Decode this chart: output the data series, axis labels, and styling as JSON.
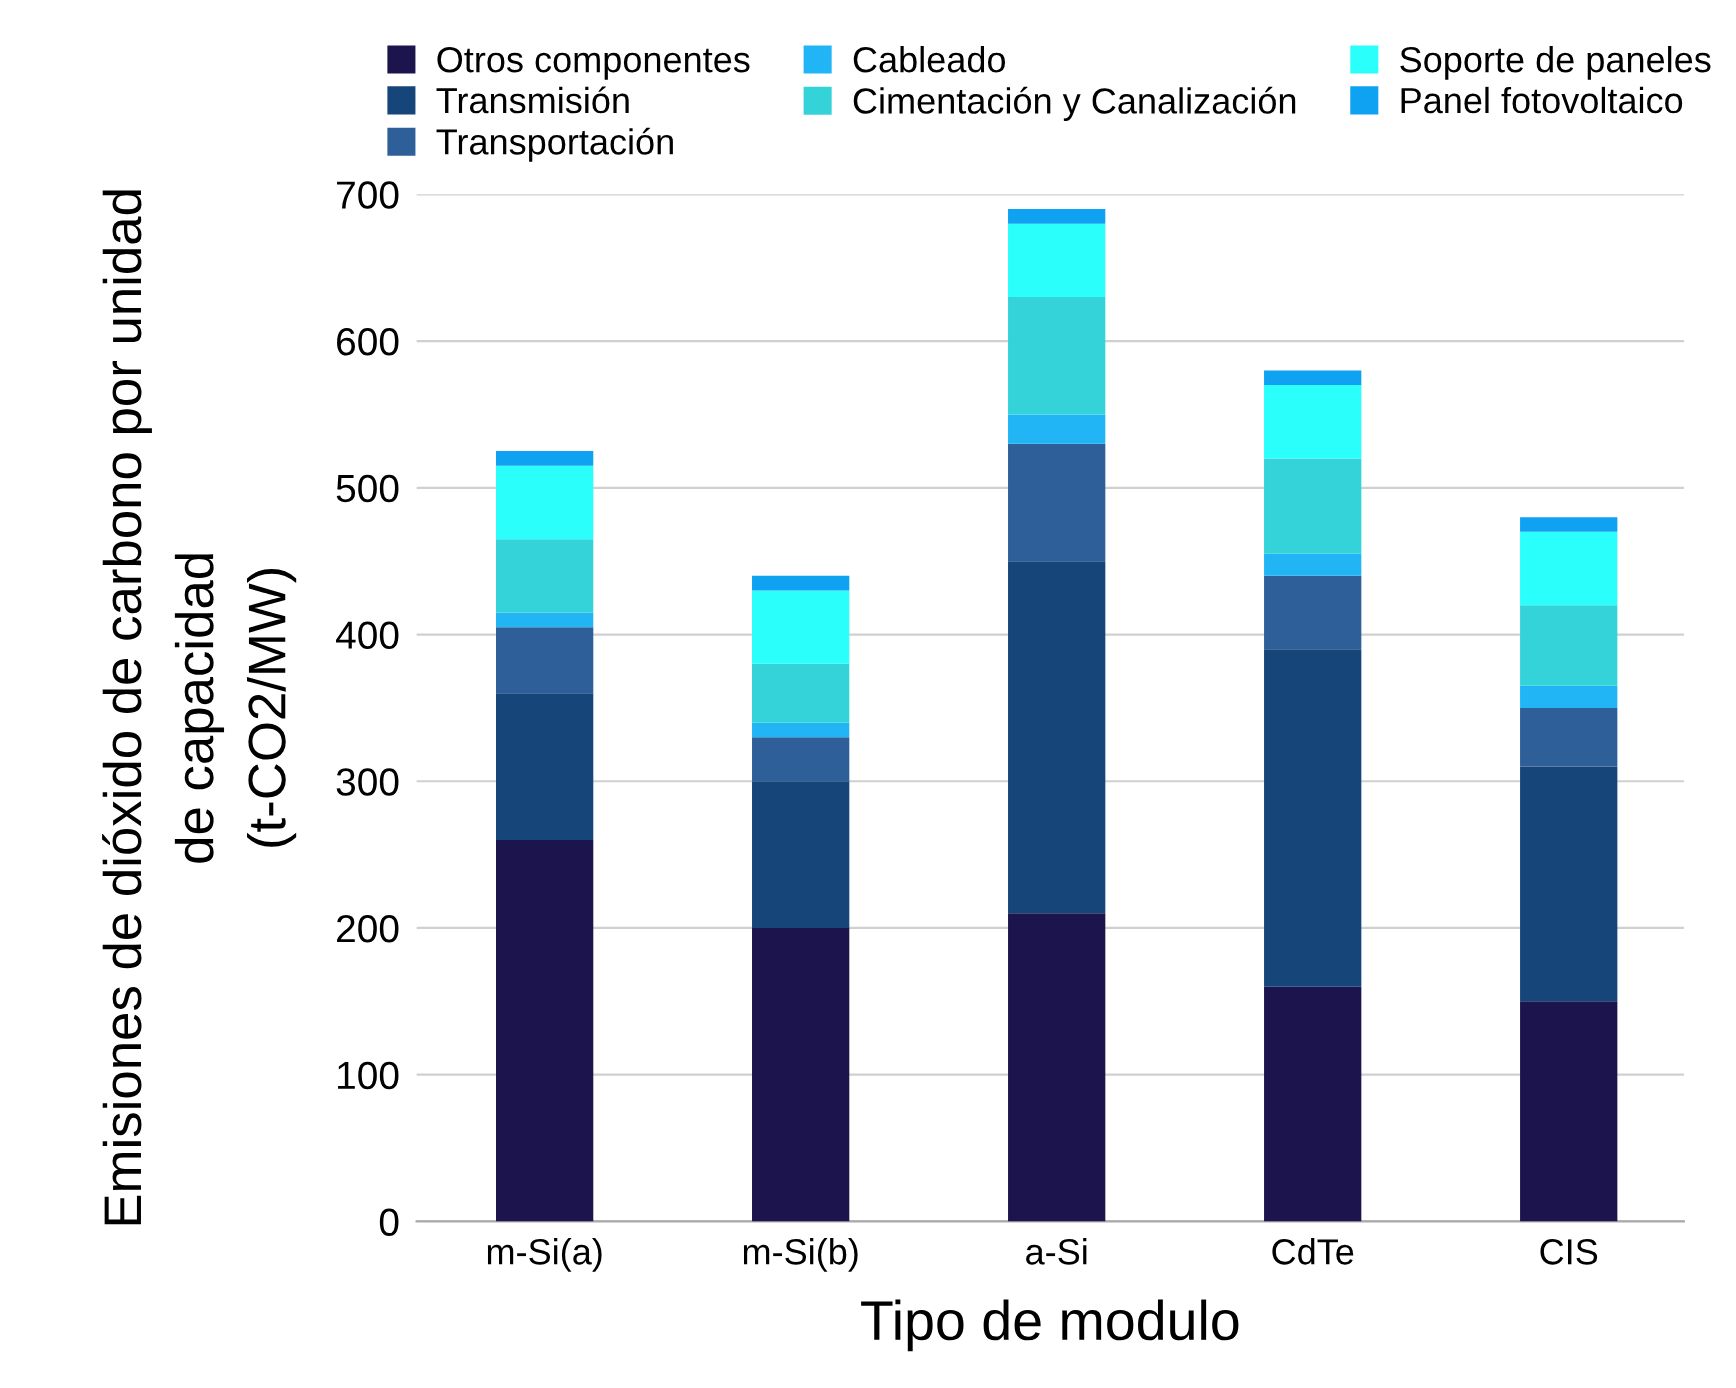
{
  "chart_data": {
    "type": "bar",
    "stacked": true,
    "xlabel": "Tipo de modulo",
    "ylabel": "Emisiones de dióxido de carbono por unidad\nde capacidad\n(t-CO2/MW)",
    "categories": [
      "m-Si(a)",
      "m-Si(b)",
      "a-Si",
      "CdTe",
      "CIS"
    ],
    "series": [
      {
        "name": "Otros componentes",
        "color": "#1c154d",
        "values": [
          260,
          200,
          210,
          160,
          150
        ]
      },
      {
        "name": "Transmisión",
        "color": "#16457a",
        "values": [
          100,
          100,
          240,
          230,
          160
        ]
      },
      {
        "name": "Transportación",
        "color": "#2e5f98",
        "values": [
          45,
          30,
          80,
          50,
          40
        ]
      },
      {
        "name": "Cableado",
        "color": "#21b5f5",
        "values": [
          10,
          10,
          20,
          15,
          15
        ]
      },
      {
        "name": "Cimentación y Canalización",
        "color": "#34d3d9",
        "values": [
          50,
          40,
          80,
          65,
          55
        ]
      },
      {
        "name": "Soporte de paneles",
        "color": "#2afffb",
        "values": [
          50,
          50,
          50,
          50,
          50
        ]
      },
      {
        "name": "Panel fotovoltaico",
        "color": "#0fa2f2",
        "values": [
          10,
          10,
          10,
          10,
          10
        ]
      }
    ],
    "ylim": [
      0,
      700
    ],
    "yticks": [
      0,
      100,
      200,
      300,
      400,
      500,
      600,
      700
    ],
    "grid": "y",
    "legend": "top"
  }
}
